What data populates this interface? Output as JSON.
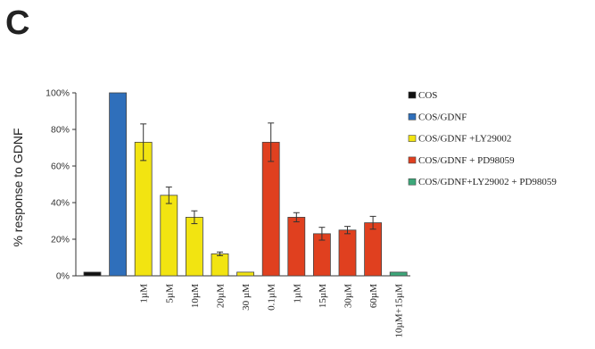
{
  "panel_label": "C",
  "chart_data": {
    "type": "bar",
    "ylabel": "% response to GDNF",
    "ylim": [
      0,
      100
    ],
    "yticks": [
      "0%",
      "20%",
      "40%",
      "60%",
      "80%",
      "100%"
    ],
    "grid": false,
    "legend_position": "right",
    "categories": [
      "",
      "",
      "1µM",
      "5µM",
      "10µM",
      "20µM",
      "30 µM",
      "0.1µM",
      "1µM",
      "15µM",
      "30µM",
      "60µM",
      "10µM+15µM"
    ],
    "values": [
      2,
      100,
      73,
      44,
      32,
      12,
      2,
      73,
      32,
      23,
      25,
      29,
      2
    ],
    "errors": [
      0,
      0,
      10,
      4.5,
      3.5,
      1,
      0,
      10.5,
      2.5,
      3.5,
      2,
      3.5,
      0
    ],
    "bar_series": [
      0,
      1,
      2,
      2,
      2,
      2,
      2,
      3,
      3,
      3,
      3,
      3,
      4
    ],
    "series": [
      {
        "name": "COS",
        "color": "#111111"
      },
      {
        "name": "COS/GDNF",
        "color": "#2f6fbb"
      },
      {
        "name": "COS/GDNF +LY29002",
        "color": "#f2e411"
      },
      {
        "name": "COS/GDNF + PD98059",
        "color": "#e0401f"
      },
      {
        "name": "COS/GDNF+LY29002 + PD98059",
        "color": "#3da87a"
      }
    ]
  }
}
